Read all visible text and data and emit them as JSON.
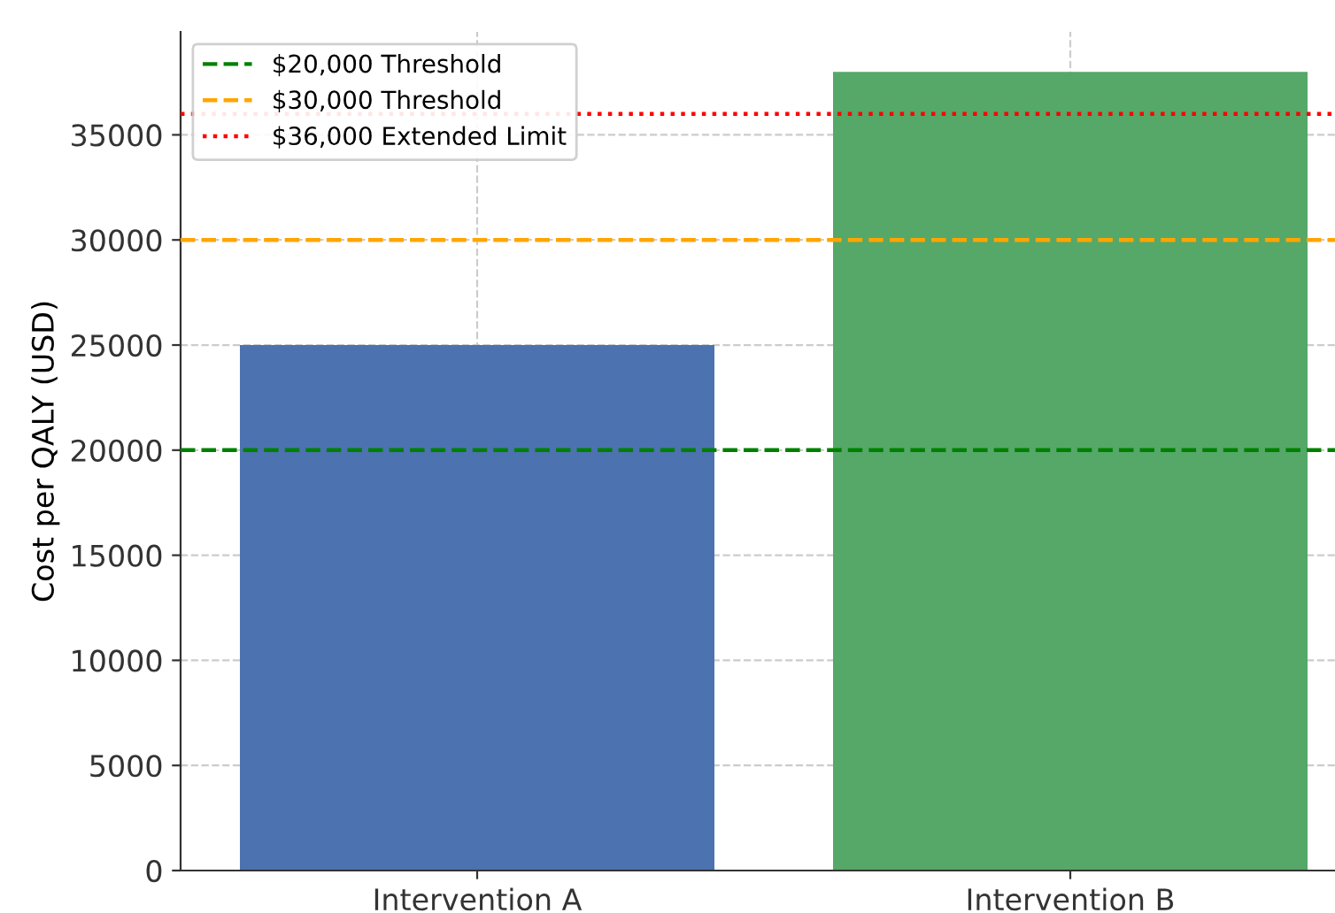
{
  "chart_data": {
    "type": "bar",
    "ylabel": "Cost per QALY (USD)",
    "categories": [
      "Intervention A",
      "Intervention B"
    ],
    "values": [
      25000,
      38000
    ],
    "colors": [
      "#4c72b0",
      "#55a868"
    ],
    "ylim": [
      0,
      39900
    ],
    "yticks": [
      0,
      5000,
      10000,
      15000,
      20000,
      25000,
      30000,
      35000
    ],
    "grid": true,
    "legend": "top left",
    "ref_lines": [
      {
        "axis": "y",
        "value": 20000,
        "label": "$20,000 Threshold",
        "color": "#008000",
        "line_style": "dashed"
      },
      {
        "axis": "y",
        "value": 30000,
        "label": "$30,000 Threshold",
        "color": "#ffa500",
        "line_style": "dashed"
      },
      {
        "axis": "y",
        "value": 36000,
        "label": "$36,000 Extended Limit",
        "color": "#ff0000",
        "line_style": "dotted"
      }
    ]
  }
}
